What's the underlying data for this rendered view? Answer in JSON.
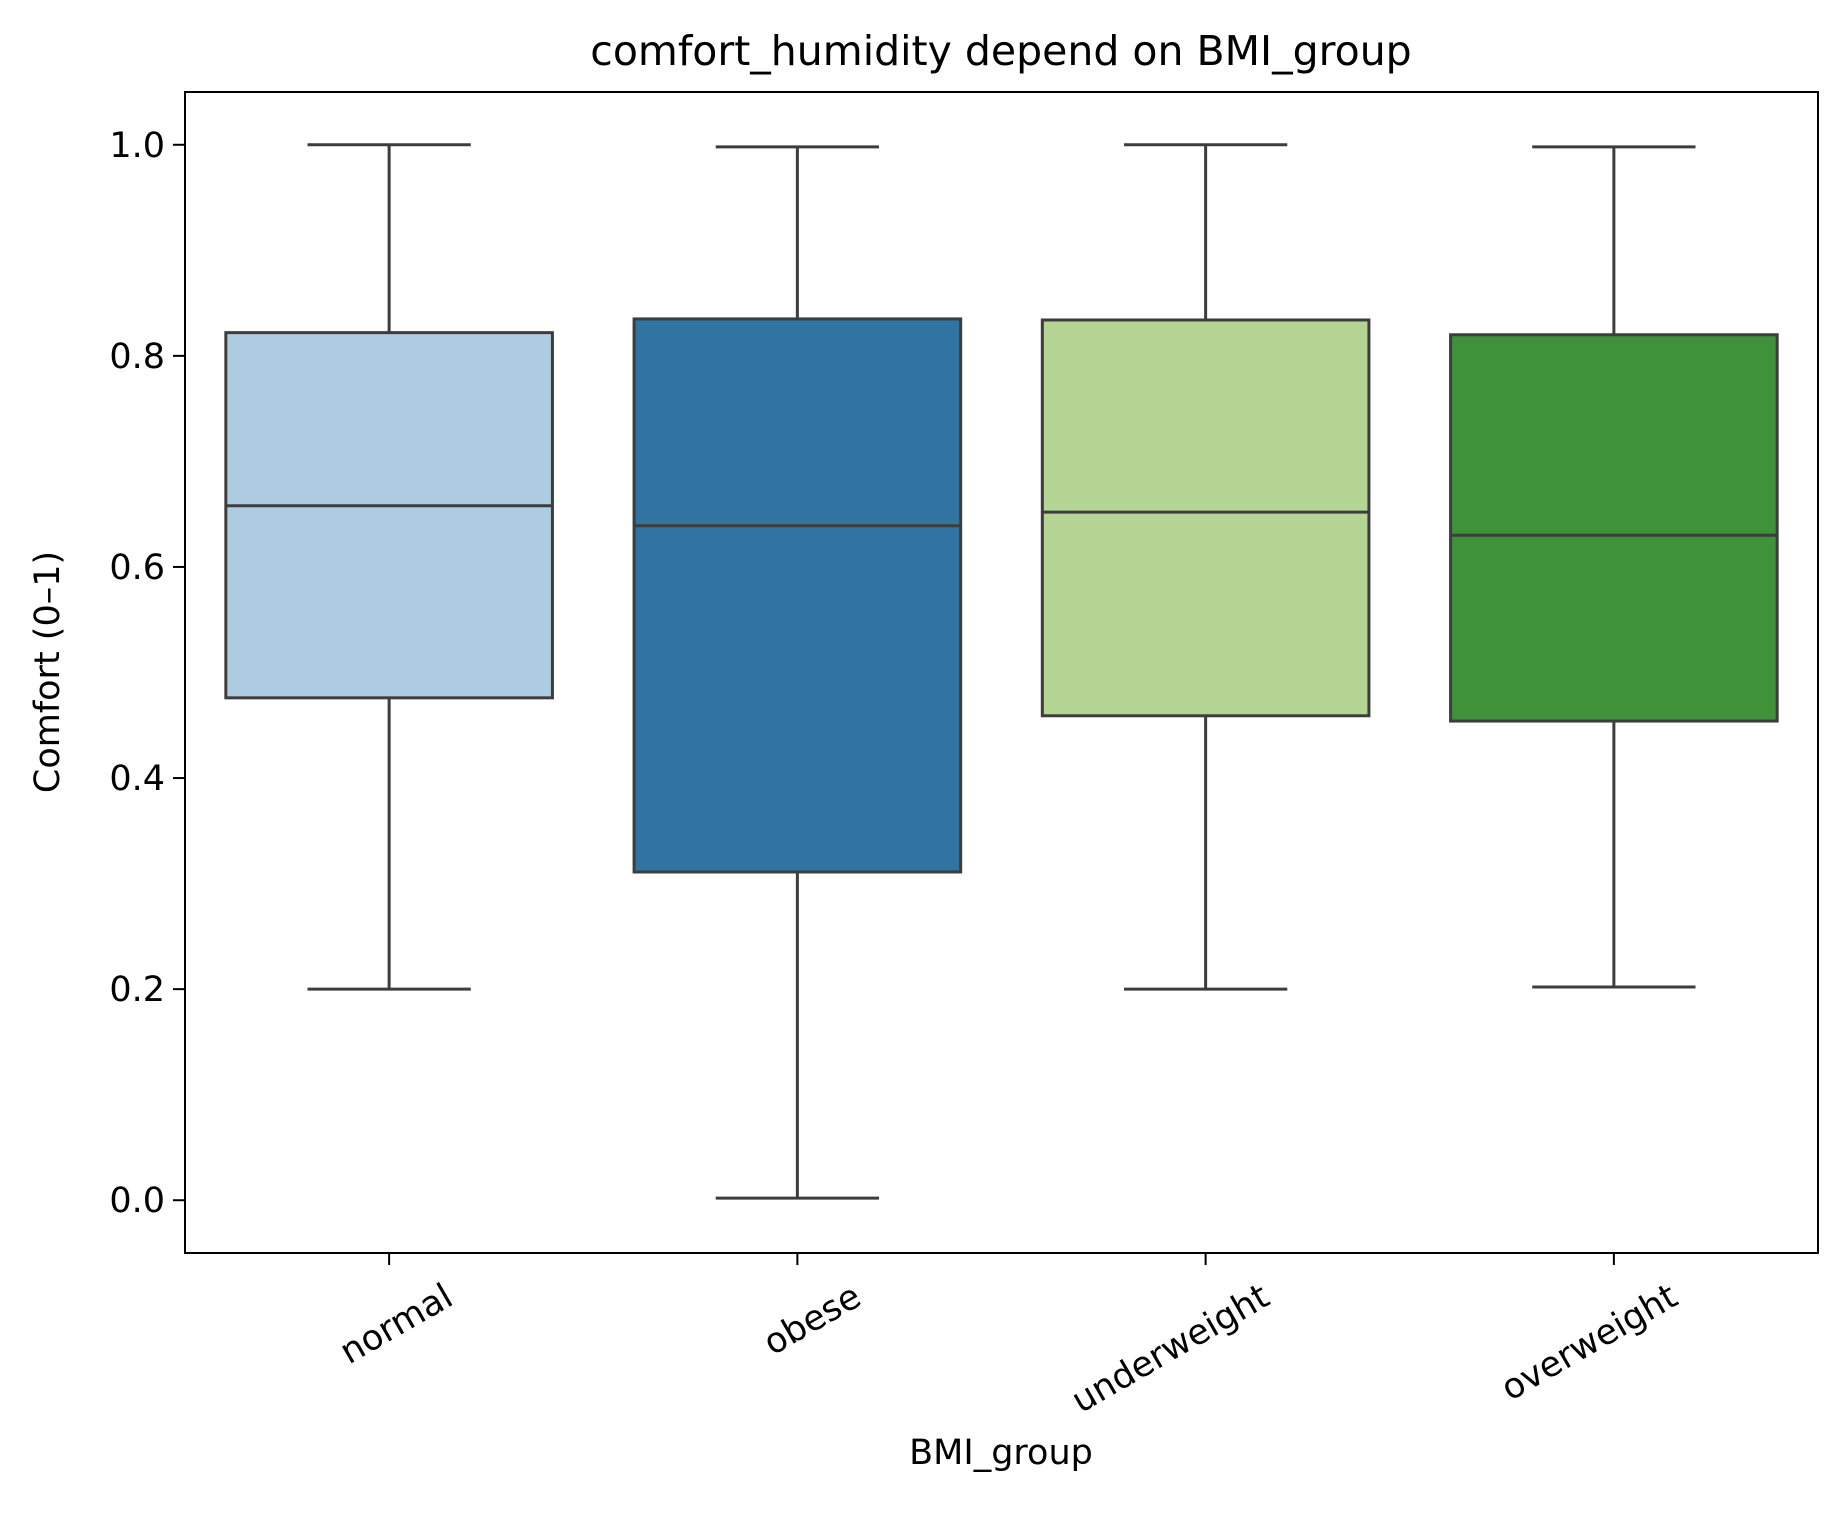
{
  "chart_data": {
    "type": "box",
    "title": "comfort_humidity depend on BMI_group",
    "xlabel": "BMI_group",
    "ylabel": "Comfort (0–1)",
    "ylim": [
      -0.05,
      1.05
    ],
    "yticks": [
      "0.0",
      "0.2",
      "0.4",
      "0.6",
      "0.8",
      "1.0"
    ],
    "ytick_values": [
      0.0,
      0.2,
      0.4,
      0.6,
      0.8,
      1.0
    ],
    "grid": false,
    "categories": [
      "normal",
      "obese",
      "underweight",
      "overweight"
    ],
    "boxes": [
      {
        "category": "normal",
        "whisker_low": 0.2,
        "q1": 0.476,
        "median": 0.658,
        "q3": 0.822,
        "whisker_high": 1.0,
        "color": "#aecce1"
      },
      {
        "category": "obese",
        "whisker_low": 0.002,
        "q1": 0.311,
        "median": 0.639,
        "q3": 0.835,
        "whisker_high": 0.998,
        "color": "#3274a1"
      },
      {
        "category": "underweight",
        "whisker_low": 0.2,
        "q1": 0.459,
        "median": 0.652,
        "q3": 0.834,
        "whisker_high": 1.0,
        "color": "#b4d593"
      },
      {
        "category": "overweight",
        "whisker_low": 0.202,
        "q1": 0.454,
        "median": 0.63,
        "q3": 0.82,
        "whisker_high": 0.998,
        "color": "#3f913a"
      }
    ],
    "line_color": "#3d3d3d",
    "axes_color": "#000000"
  }
}
